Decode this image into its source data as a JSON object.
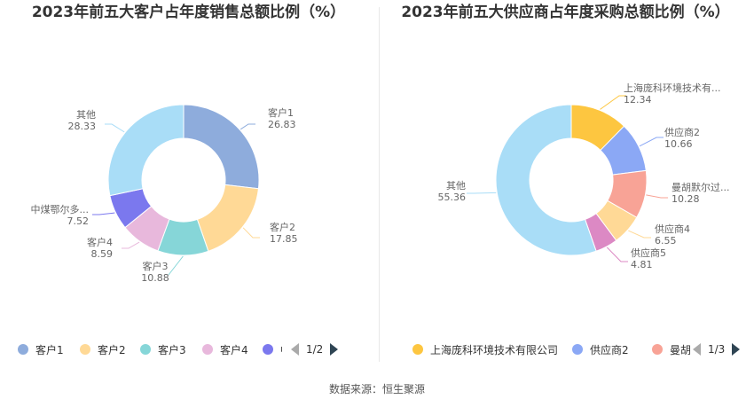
{
  "source_text": "数据来源：恒生聚源",
  "chart_data": [
    {
      "type": "pie",
      "title": "2023年前五大客户占年度销售总额比例（%）",
      "series": [
        {
          "name": "客户1",
          "value": 26.83,
          "label": "客户1",
          "color": "#8eacdc"
        },
        {
          "name": "客户2",
          "value": 17.85,
          "label": "客户2",
          "color": "#ffd996"
        },
        {
          "name": "客户3",
          "value": 10.88,
          "label": "客户3",
          "color": "#86d6d8"
        },
        {
          "name": "客户4",
          "value": 8.59,
          "label": "客户4",
          "color": "#e8b8dc"
        },
        {
          "name": "中煤鄂尔多斯能源化工有限公司",
          "value": 7.52,
          "label": "中煤鄂尔多...",
          "color": "#7b78ee"
        },
        {
          "name": "其他",
          "value": 28.33,
          "label": "其他",
          "color": "#a9ddf7"
        }
      ],
      "legend": {
        "items": [
          "客户1",
          "客户2",
          "客户3",
          "客户4",
          "中"
        ],
        "page": "1/2"
      }
    },
    {
      "type": "pie",
      "title": "2023年前五大供应商占年度采购总额比例（%）",
      "series": [
        {
          "name": "上海庞科环境技术有限公司",
          "value": 12.34,
          "label": "上海庞科环境技术有...",
          "color": "#fdc640"
        },
        {
          "name": "供应商2",
          "value": 10.66,
          "label": "供应商2",
          "color": "#8ba8f5"
        },
        {
          "name": "曼胡默尔过滤",
          "value": 10.28,
          "label": "曼胡默尔过...",
          "color": "#f8a396"
        },
        {
          "name": "供应商4",
          "value": 6.55,
          "label": "供应商4",
          "color": "#ffd996"
        },
        {
          "name": "供应商5",
          "value": 4.81,
          "label": "供应商5",
          "color": "#dc89c4"
        },
        {
          "name": "其他",
          "value": 55.36,
          "label": "其他",
          "color": "#a9ddf7"
        }
      ],
      "legend": {
        "items": [
          "上海庞科环境技术有限公司",
          "供应商2",
          "曼胡"
        ],
        "page": "1/3"
      }
    }
  ]
}
